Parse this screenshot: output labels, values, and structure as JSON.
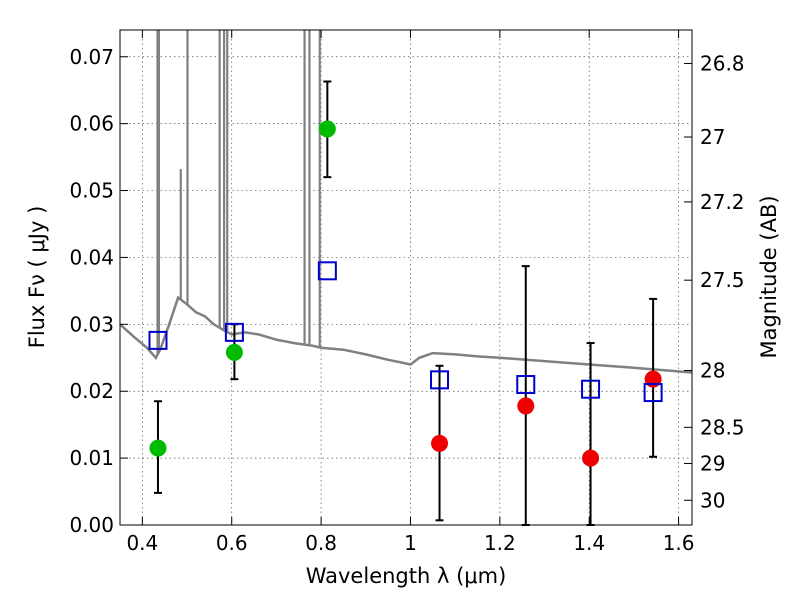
{
  "chart_data": {
    "type": "scatter",
    "title": "",
    "xlabel": "Wavelength  λ (μm)",
    "ylabel": "Flux  Fν  ( μJy )",
    "y2label": "Magnitude (AB)",
    "xlim": [
      0.35,
      1.63
    ],
    "ylim": [
      0.0,
      0.074
    ],
    "grid": true,
    "x_ticks": [
      0.4,
      0.6,
      0.8,
      1.0,
      1.2,
      1.4,
      1.6
    ],
    "x_tick_labels": [
      "0.4",
      "0.6",
      "0.8",
      "1",
      "1.2",
      "1.4",
      "1.6"
    ],
    "y_ticks": [
      0.0,
      0.01,
      0.02,
      0.03,
      0.04,
      0.05,
      0.06,
      0.07
    ],
    "y_tick_labels": [
      "0.00",
      "0.01",
      "0.02",
      "0.03",
      "0.04",
      "0.05",
      "0.06",
      "0.07"
    ],
    "y2_ticks": [
      {
        "label": "26.8",
        "flux": 0.069
      },
      {
        "label": "27",
        "flux": 0.058
      },
      {
        "label": "27.2",
        "flux": 0.0483
      },
      {
        "label": "27.5",
        "flux": 0.0366
      },
      {
        "label": "28",
        "flux": 0.0231
      },
      {
        "label": "28.5",
        "flux": 0.0146
      },
      {
        "label": "29",
        "flux": 0.0092
      },
      {
        "label": "30",
        "flux": 0.0037
      }
    ],
    "colors": {
      "model": "#808080",
      "green_points": "#00bb00",
      "red_points": "#ee0000",
      "model_squares": "#0000cc",
      "errorbars": "#000000"
    },
    "model_spectrum": {
      "continuum": [
        [
          0.35,
          0.03
        ],
        [
          0.38,
          0.0282
        ],
        [
          0.41,
          0.0265
        ],
        [
          0.43,
          0.025
        ],
        [
          0.44,
          0.0262
        ],
        [
          0.46,
          0.03
        ],
        [
          0.48,
          0.034
        ],
        [
          0.5,
          0.033
        ],
        [
          0.52,
          0.0318
        ],
        [
          0.54,
          0.0312
        ],
        [
          0.56,
          0.03
        ],
        [
          0.58,
          0.0292
        ],
        [
          0.6,
          0.0285
        ],
        [
          0.63,
          0.0288
        ],
        [
          0.66,
          0.0285
        ],
        [
          0.7,
          0.0277
        ],
        [
          0.74,
          0.0272
        ],
        [
          0.78,
          0.0268
        ],
        [
          0.8,
          0.0265
        ],
        [
          0.85,
          0.0262
        ],
        [
          0.9,
          0.0255
        ],
        [
          0.95,
          0.0247
        ],
        [
          0.98,
          0.0243
        ],
        [
          1.0,
          0.024
        ],
        [
          1.02,
          0.025
        ],
        [
          1.05,
          0.0257
        ],
        [
          1.1,
          0.0255
        ],
        [
          1.15,
          0.0252
        ],
        [
          1.2,
          0.025
        ],
        [
          1.3,
          0.0245
        ],
        [
          1.4,
          0.024
        ],
        [
          1.5,
          0.0235
        ],
        [
          1.63,
          0.0228
        ]
      ],
      "emission_lines": [
        {
          "x": 0.434,
          "peak": 0.074
        },
        {
          "x": 0.437,
          "peak": 0.074
        },
        {
          "x": 0.486,
          "peak": 0.0532
        },
        {
          "x": 0.501,
          "peak": 0.074
        },
        {
          "x": 0.573,
          "peak": 0.074
        },
        {
          "x": 0.583,
          "peak": 0.074
        },
        {
          "x": 0.59,
          "peak": 0.074
        },
        {
          "x": 0.763,
          "peak": 0.074
        },
        {
          "x": 0.774,
          "peak": 0.074
        },
        {
          "x": 0.797,
          "peak": 0.074
        }
      ]
    },
    "series": [
      {
        "marker": "circle",
        "color_key": "green_points",
        "points": [
          {
            "x": 0.435,
            "y": 0.0115,
            "yerr_low": 0.0048,
            "yerr_high": 0.0185
          },
          {
            "x": 0.606,
            "y": 0.0258,
            "yerr_low": 0.0218,
            "yerr_high": 0.03
          },
          {
            "x": 0.814,
            "y": 0.0592,
            "yerr_low": 0.052,
            "yerr_high": 0.0663
          }
        ]
      },
      {
        "marker": "circle",
        "color_key": "red_points",
        "points": [
          {
            "x": 1.065,
            "y": 0.0122,
            "yerr_low": 0.0007,
            "yerr_high": 0.0238
          },
          {
            "x": 1.258,
            "y": 0.0178,
            "yerr_low": 0.0,
            "yerr_high": 0.0387
          },
          {
            "x": 1.403,
            "y": 0.01,
            "yerr_low": 0.0,
            "yerr_high": 0.0272
          },
          {
            "x": 1.543,
            "y": 0.0218,
            "yerr_low": 0.0102,
            "yerr_high": 0.0338
          }
        ]
      },
      {
        "marker": "open-square",
        "color_key": "model_squares",
        "points": [
          {
            "x": 0.435,
            "y": 0.0276
          },
          {
            "x": 0.606,
            "y": 0.0288
          },
          {
            "x": 0.814,
            "y": 0.038
          },
          {
            "x": 1.065,
            "y": 0.0217
          },
          {
            "x": 1.258,
            "y": 0.021
          },
          {
            "x": 1.403,
            "y": 0.0203
          },
          {
            "x": 1.543,
            "y": 0.0198
          }
        ]
      }
    ]
  }
}
